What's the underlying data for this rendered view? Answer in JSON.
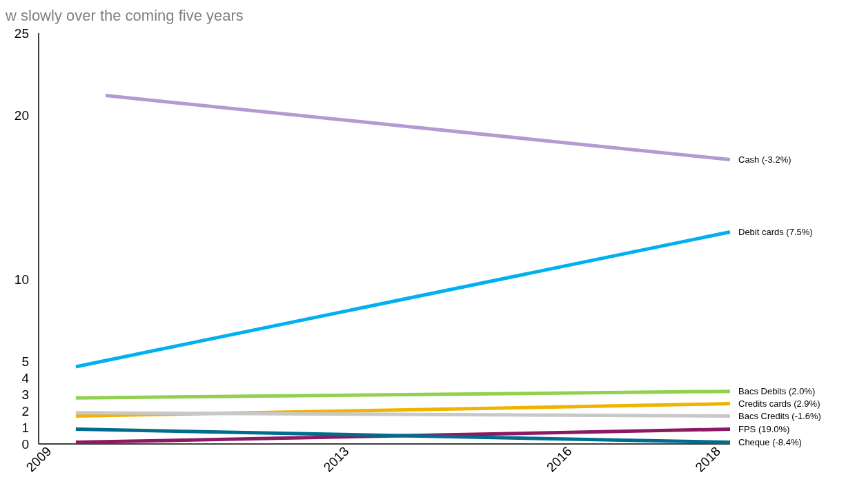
{
  "chart_data": {
    "type": "line",
    "title": "w slowly over the coming five years",
    "xlim": [
      2009,
      2018.3
    ],
    "xticks": [
      2009,
      2013,
      2016,
      2018
    ],
    "ylim": [
      0,
      25
    ],
    "yticks": [
      0,
      1,
      2,
      3,
      4,
      5,
      10,
      20,
      25
    ],
    "grid": false,
    "marker": "none",
    "line_style": "solid",
    "series": [
      {
        "name": "Cash (-3.2%)",
        "color": "#b39ad0",
        "x": [
          2009.9,
          2018.3
        ],
        "values": [
          21.2,
          17.3
        ]
      },
      {
        "name": "Debit cards (7.5%)",
        "color": "#00b0f0",
        "x": [
          2009.5,
          2018.3
        ],
        "values": [
          4.7,
          12.9
        ]
      },
      {
        "name": "Bacs Debits (2.0%)",
        "color": "#92d050",
        "x": [
          2009.5,
          2018.3
        ],
        "values": [
          2.8,
          3.2
        ]
      },
      {
        "name": "Credits cards (2.9%)",
        "color": "#f0b400",
        "x": [
          2009.5,
          2018.3
        ],
        "values": [
          1.7,
          2.45
        ]
      },
      {
        "name": "Bacs Credits (-1.6%)",
        "color": "#c8c8c8",
        "x": [
          2009.5,
          2018.3
        ],
        "values": [
          1.9,
          1.7
        ]
      },
      {
        "name": "FPS (19.0%)",
        "color": "#8b1a62",
        "x": [
          2009.5,
          2018.3
        ],
        "values": [
          0.1,
          0.9
        ]
      },
      {
        "name": "Cheque (-8.4%)",
        "color": "#006d8f",
        "x": [
          2009.5,
          2018.3
        ],
        "values": [
          0.9,
          0.1
        ]
      }
    ]
  }
}
